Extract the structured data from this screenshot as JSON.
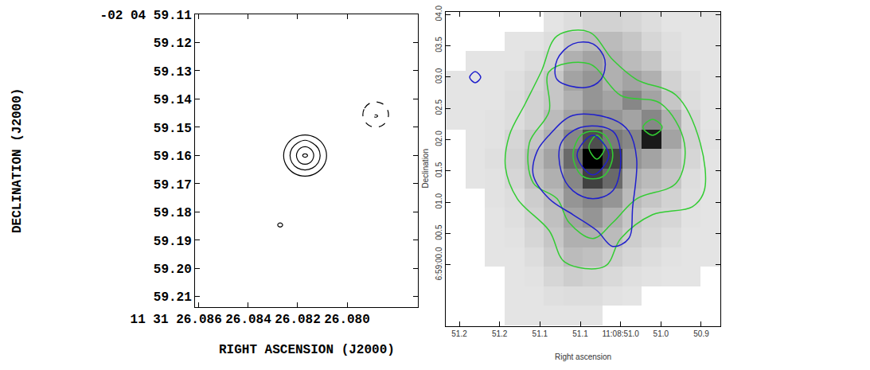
{
  "chart_data": [
    {
      "type": "contour",
      "xlabel": "RIGHT ASCENSION (J2000)",
      "ylabel": "DECLINATION (J2000)",
      "xlim": [
        26.08616,
        26.07713
      ],
      "ylim": [
        59.2137,
        59.11
      ],
      "xticks": [
        {
          "value": 26.086,
          "label": "11 31 26.086"
        },
        {
          "value": 26.084,
          "label": "26.084"
        },
        {
          "value": 26.082,
          "label": "26.082"
        },
        {
          "value": 26.08,
          "label": "26.080"
        }
      ],
      "yticks": [
        {
          "value": 59.11,
          "label": "-02 04 59.11"
        },
        59.12,
        59.13,
        59.14,
        59.15,
        59.16,
        59.17,
        59.18,
        59.19,
        {
          "value": 59.2,
          "label": "59.20"
        },
        59.21
      ],
      "grid": false,
      "series": [
        {
          "color": "#000000",
          "line_style": "solid",
          "x": [
            26.08257,
            26.08245,
            26.08214,
            26.0817,
            26.08127,
            26.08095,
            26.08083,
            26.08095,
            26.08127,
            26.0817,
            26.08214,
            26.08245,
            26.08257
          ],
          "y": [
            59.16,
            59.15635,
            59.15368,
            59.1527,
            59.15368,
            59.15635,
            59.16,
            59.16365,
            59.16632,
            59.1673,
            59.16632,
            59.16365,
            59.16
          ]
        },
        {
          "color": "#000000",
          "line_style": "solid",
          "x": [
            26.08231,
            26.08223,
            26.08201,
            26.0817,
            26.0814,
            26.08117,
            26.08109,
            26.08117,
            26.0814,
            26.0817,
            26.08201,
            26.08223,
            26.08231
          ],
          "y": [
            59.16,
            59.15745,
            59.15558,
            59.1546,
            59.15558,
            59.15745,
            59.16,
            59.16255,
            59.16442,
            59.1651,
            59.16442,
            59.16255,
            59.16
          ]
        },
        {
          "color": "#000000",
          "line_style": "solid",
          "x": [
            26.08205,
            26.082,
            26.08188,
            26.0817,
            26.08153,
            26.0814,
            26.08135,
            26.0814,
            26.08153,
            26.0817,
            26.08188,
            26.082,
            26.08205
          ],
          "y": [
            59.16,
            59.15845,
            59.15732,
            59.1569,
            59.15732,
            59.15845,
            59.16,
            59.16155,
            59.16268,
            59.1631,
            59.16268,
            59.16155,
            59.16
          ]
        },
        {
          "color": "#000000",
          "line_style": "solid",
          "x": [
            26.0818,
            26.08175,
            26.08165,
            26.0816,
            26.08165,
            26.08175,
            26.0818
          ],
          "y": [
            59.16,
            59.15948,
            59.15948,
            59.16,
            59.16052,
            59.16052,
            59.16
          ]
        },
        {
          "color": "#000000",
          "line_style": "dashed",
          "x": [
            26.07936,
            26.07929,
            26.0791,
            26.07884,
            26.07858,
            26.07839,
            26.07832,
            26.07839,
            26.07858,
            26.07884,
            26.0791,
            26.07929,
            26.07936
          ],
          "y": [
            59.1455,
            59.14325,
            59.1416,
            59.141,
            59.1416,
            59.14325,
            59.1455,
            59.14775,
            59.1494,
            59.15,
            59.1494,
            59.14775,
            59.1455
          ]
        },
        {
          "color": "#000000",
          "line_style": "dashed",
          "x": [
            26.07892,
            26.07888,
            26.0788,
            26.07876,
            26.0788,
            26.07888,
            26.07892
          ],
          "y": [
            59.146,
            59.14565,
            59.14565,
            59.146,
            59.14635,
            59.14635,
            59.146
          ]
        },
        {
          "color": "#000000",
          "line_style": "solid",
          "x": [
            26.08281,
            26.08276,
            26.08266,
            26.08261,
            26.08266,
            26.08276,
            26.08281
          ],
          "y": [
            59.1846,
            59.18399,
            59.18399,
            59.1846,
            59.18521,
            59.18521,
            59.1846
          ]
        }
      ]
    },
    {
      "type": "image",
      "xlabel": "Right ascension",
      "ylabel": "Declination",
      "xlim": [
        51.2168,
        50.8763
      ],
      "ylim": [
        -0.98,
        4.04
      ],
      "xticks": [
        51.2,
        {
          "value": 51.15,
          "label": "51.2"
        },
        51.1,
        {
          "value": 51.05,
          "label": "51.1"
        },
        {
          "value": 51.0,
          "label": "11:08:51.0"
        },
        {
          "value": 50.95,
          "label": "51.0"
        },
        50.9
      ],
      "yticks": [
        {
          "value": 4.0,
          "label": "04.0"
        },
        {
          "value": 3.5,
          "label": "03.5"
        },
        {
          "value": 3.0,
          "label": "03.0"
        },
        {
          "value": 2.5,
          "label": "02.5"
        },
        {
          "value": 2.0,
          "label": "02.0"
        },
        {
          "value": 1.5,
          "label": "01.5"
        },
        {
          "value": 1.0,
          "label": "01.0"
        },
        {
          "value": 0.5,
          "label": "00.5"
        },
        {
          "value": 0,
          "label": "6:59:00.0"
        }
      ],
      "grid": false,
      "image": {
        "x": [
          51.2047,
          51.1804,
          51.1561,
          51.1318,
          51.1075,
          51.0832,
          51.0589,
          51.0346,
          51.0103,
          50.986,
          50.9617,
          50.9374,
          50.9131,
          50.8888
        ],
        "y": [
          3.883,
          3.57,
          3.257,
          2.943,
          2.63,
          2.317,
          2.003,
          1.69,
          1.377,
          1.063,
          0.75,
          0.437,
          0.123,
          -0.19,
          -0.503,
          -0.817
        ],
        "cells": [
          [
            null,
            null,
            null,
            null,
            null,
            0.12,
            0.15,
            0.2,
            0.2,
            0.18,
            0.15,
            0.12,
            0.12,
            0.12
          ],
          [
            null,
            null,
            null,
            0.12,
            0.12,
            0.15,
            0.25,
            0.3,
            0.3,
            0.25,
            0.18,
            0.14,
            0.12,
            0.12
          ],
          [
            null,
            0.12,
            0.12,
            0.12,
            0.15,
            0.2,
            0.35,
            0.4,
            0.35,
            0.3,
            0.25,
            0.15,
            0.12,
            0.12
          ],
          [
            0.12,
            0.12,
            0.12,
            0.14,
            0.18,
            0.25,
            0.4,
            0.45,
            0.35,
            0.4,
            0.35,
            0.2,
            0.14,
            0.12
          ],
          [
            0.12,
            0.12,
            0.12,
            0.15,
            0.2,
            0.25,
            0.35,
            0.45,
            0.4,
            0.5,
            0.4,
            0.25,
            0.15,
            0.12
          ],
          [
            0.12,
            0.12,
            0.13,
            0.15,
            0.2,
            0.3,
            0.4,
            0.5,
            0.45,
            0.4,
            0.5,
            0.35,
            0.18,
            0.12
          ],
          [
            null,
            0.12,
            0.13,
            0.18,
            0.25,
            0.35,
            0.5,
            0.7,
            0.55,
            0.5,
            0.9,
            0.4,
            0.2,
            0.13
          ],
          [
            null,
            0.12,
            0.14,
            0.2,
            0.3,
            0.4,
            0.6,
            1,
            0.75,
            0.45,
            0.4,
            0.3,
            0.18,
            0.12
          ],
          [
            null,
            0.12,
            0.13,
            0.18,
            0.28,
            0.35,
            0.5,
            0.75,
            0.6,
            0.35,
            0.3,
            0.25,
            0.15,
            0.12
          ],
          [
            null,
            null,
            0.13,
            0.15,
            0.22,
            0.3,
            0.45,
            0.5,
            0.45,
            0.3,
            0.25,
            0.2,
            0.14,
            0.12
          ],
          [
            null,
            null,
            0.12,
            0.14,
            0.2,
            0.28,
            0.4,
            0.45,
            0.35,
            0.25,
            0.2,
            0.18,
            0.13,
            0.12
          ],
          [
            null,
            null,
            0.12,
            0.13,
            0.18,
            0.25,
            0.35,
            0.35,
            0.3,
            0.22,
            0.18,
            0.15,
            0.12,
            0.12
          ],
          [
            null,
            null,
            0.12,
            0.12,
            0.15,
            0.22,
            0.3,
            0.28,
            0.22,
            0.18,
            0.15,
            0.13,
            0.12,
            0.12
          ],
          [
            null,
            null,
            null,
            0.12,
            0.13,
            0.18,
            0.22,
            0.2,
            0.17,
            0.14,
            0.13,
            0.12,
            0.12,
            null
          ],
          [
            null,
            null,
            null,
            0.12,
            0.12,
            0.14,
            0.15,
            0.15,
            0.13,
            0.12,
            null,
            null,
            null,
            null
          ],
          [
            null,
            null,
            null,
            0.12,
            0.12,
            0.12,
            0.12,
            0.12,
            null,
            null,
            null,
            null,
            null,
            null
          ]
        ]
      },
      "series": [
        {
          "color": "#33cc33",
          "line_style": "solid",
          "x": [
            51.0787,
            51.0393,
            51.0097,
            50.9801,
            50.9308,
            50.9012,
            50.8963,
            50.911,
            50.9604,
            50.9998,
            51.0195,
            51.0688,
            51.0886,
            51.128,
            51.1428,
            51.1379,
            51.1181,
            51.0984,
            51.0787
          ],
          "y": [
            3.6574,
            3.7208,
            3.2766,
            2.9594,
            2.7056,
            1.9442,
            1.1827,
            0.9289,
            0.802,
            0.4213,
            -0.0228,
            0.0406,
            0.5482,
            1.0558,
            1.5635,
            2.0711,
            2.5787,
            3.0863,
            3.6574
          ]
        },
        {
          "color": "#33cc33",
          "line_style": "solid",
          "x": [
            51.0886,
            51.0393,
            50.9998,
            50.9505,
            50.9209,
            50.9308,
            50.9801,
            51.0097,
            51.0343,
            51.0639,
            51.0787,
            51.1083,
            51.1132,
            51.0886,
            51.0886
          ],
          "y": [
            3.0863,
            3.2132,
            2.7056,
            2.5787,
            1.9442,
            1.3096,
            1.0558,
            0.6751,
            0.4213,
            0.6751,
            1.0558,
            1.3096,
            1.9442,
            2.4518,
            3.0863
          ]
        },
        {
          "color": "#33cc33",
          "line_style": "solid",
          "x": [
            51.0097,
            51.0195,
            51.0343,
            51.0491,
            51.059,
            51.0491,
            51.0343,
            51.0195,
            51.0097
          ],
          "y": [
            1.7538,
            2.0711,
            2.1345,
            2.0711,
            1.7538,
            1.4365,
            1.3731,
            1.4365,
            1.7538
          ]
        },
        {
          "color": "#33cc33",
          "line_style": "solid",
          "x": [
            51.0195,
            51.0294,
            51.0393,
            51.0294,
            51.0195
          ],
          "y": [
            1.8807,
            2.0711,
            1.8807,
            1.6904,
            1.8807
          ]
        },
        {
          "color": "#33cc33",
          "line_style": "solid",
          "x": [
            50.9485,
            50.9604,
            50.9722,
            50.9604,
            50.9485
          ],
          "y": [
            2.198,
            2.3249,
            2.198,
            2.0711,
            2.198
          ]
        },
        {
          "color": "#2020cc",
          "line_style": "solid",
          "x": [
            51.0787,
            51.059,
            51.0343,
            51.0195,
            51.0245,
            51.0442,
            51.0787,
            51.0787
          ],
          "y": [
            3.2766,
            3.5305,
            3.5305,
            3.2766,
            2.9594,
            2.8325,
            2.9594,
            3.2766
          ]
        },
        {
          "color": "#2020cc",
          "line_style": "solid",
          "x": [
            51.0886,
            51.059,
            51.0097,
            50.9899,
            50.9801,
            50.985,
            50.9899,
            51.0097,
            51.0294,
            51.059,
            51.0886,
            51.1083,
            51.1034,
            51.0886
          ],
          "y": [
            2.0711,
            2.3883,
            2.3249,
            2.1345,
            1.6904,
            0.9289,
            0.4213,
            0.2944,
            0.5482,
            0.802,
            1.0558,
            1.4365,
            1.8173,
            2.0711
          ]
        },
        {
          "color": "#2020cc",
          "line_style": "solid",
          "x": [
            51.0738,
            51.0491,
            51.0097,
            50.9998,
            51.0097,
            51.0343,
            51.059,
            51.0738,
            51.0738
          ],
          "y": [
            1.9442,
            2.198,
            2.1345,
            1.6904,
            1.1827,
            1.0558,
            1.1827,
            1.5,
            1.9442
          ]
        },
        {
          "color": "#2020cc",
          "line_style": "solid",
          "x": [
            51.0146,
            51.0343,
            51.054,
            51.0343,
            51.0146
          ],
          "y": [
            1.7538,
            2.0711,
            1.7538,
            1.4365,
            1.7538
          ]
        },
        {
          "color": "#2020cc",
          "line_style": "solid",
          "x": [
            51.1734,
            51.1803,
            51.1872,
            51.1803,
            51.1734
          ],
          "y": [
            2.9975,
            3.0863,
            2.9975,
            2.9086,
            2.9975
          ]
        }
      ]
    }
  ]
}
